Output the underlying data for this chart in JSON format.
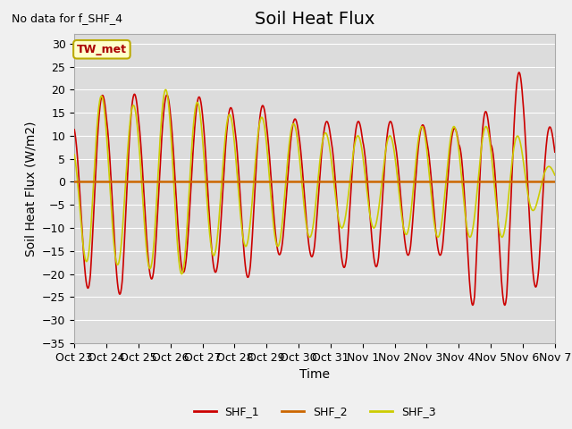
{
  "title": "Soil Heat Flux",
  "top_left_text": "No data for f_SHF_4",
  "box_label": "TW_met",
  "ylabel": "Soil Heat Flux (W/m2)",
  "xlabel": "Time",
  "ylim": [
    -35,
    32
  ],
  "yticks": [
    -35,
    -30,
    -25,
    -20,
    -15,
    -10,
    -5,
    0,
    5,
    10,
    15,
    20,
    25,
    30
  ],
  "xtick_labels": [
    "Oct 23",
    "Oct 24",
    "Oct 25",
    "Oct 26",
    "Oct 27",
    "Oct 28",
    "Oct 29",
    "Oct 30",
    "Oct 31",
    "Nov 1",
    "Nov 2",
    "Nov 3",
    "Nov 4",
    "Nov 5",
    "Nov 6",
    "Nov 7"
  ],
  "fig_bg_color": "#f0f0f0",
  "plot_bg_color": "#dcdcdc",
  "grid_color": "#ffffff",
  "shf1_color": "#cc0000",
  "shf2_color": "#cc6600",
  "shf3_color": "#cccc00",
  "legend_entries": [
    "SHF_1",
    "SHF_2",
    "SHF_3"
  ],
  "title_fontsize": 14,
  "axis_label_fontsize": 10,
  "tick_fontsize": 9,
  "n_days": 15
}
